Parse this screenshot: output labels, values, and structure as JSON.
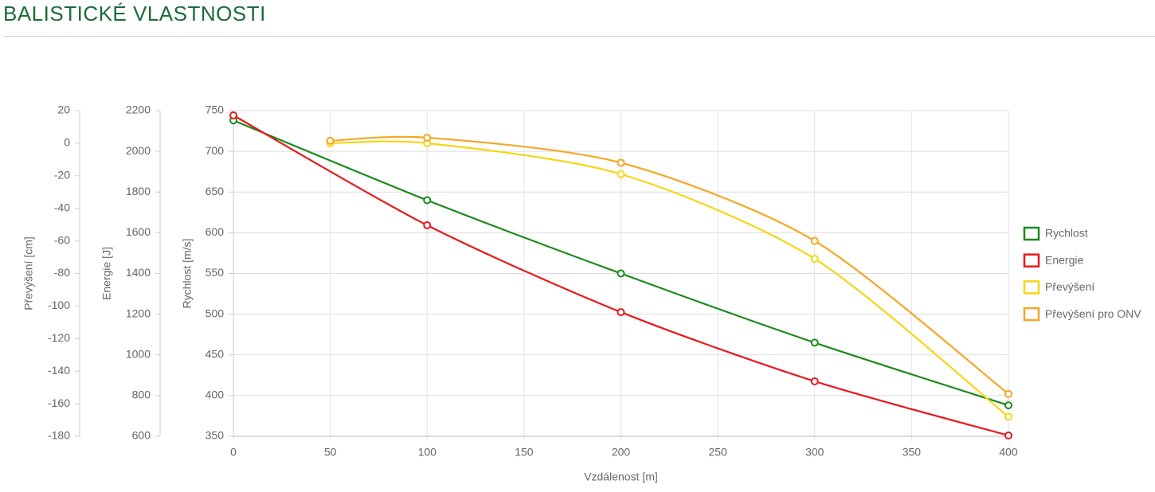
{
  "header": {
    "title": "BALISTICKÉ VLASTNOSTI"
  },
  "chart_data": {
    "type": "line",
    "xlabel": "Vzdálenost [m]",
    "xlim": [
      0,
      400
    ],
    "xticks": [
      0,
      50,
      100,
      150,
      200,
      250,
      300,
      350,
      400
    ],
    "ylabel": "Rychlost [m/s]",
    "ylim": [
      350,
      750
    ],
    "yticks": [
      350,
      400,
      450,
      500,
      550,
      600,
      650,
      700,
      750
    ],
    "y2label": "Energie [J]",
    "y2lim": [
      600,
      2200
    ],
    "y2ticks": [
      600,
      800,
      1000,
      1200,
      1400,
      1600,
      1800,
      2000,
      2200
    ],
    "y3label": "Převýšení [cm]",
    "y3lim": [
      -180,
      20
    ],
    "y3ticks": [
      -180,
      -160,
      -140,
      -120,
      -100,
      -80,
      -60,
      -40,
      -20,
      0,
      20
    ],
    "grid": true,
    "legend": "right",
    "series": [
      {
        "name": "Rychlost",
        "color": "#1a8a1a",
        "axis": "y",
        "x": [
          0,
          100,
          200,
          300,
          400
        ],
        "values": [
          738,
          640,
          550,
          465,
          388
        ]
      },
      {
        "name": "Energie",
        "color": "#e8191c",
        "axis": "y2",
        "x": [
          0,
          100,
          200,
          300,
          400
        ],
        "values": [
          2177,
          1637,
          1210,
          870,
          604
        ]
      },
      {
        "name": "Převýšení",
        "color": "#f5d614",
        "axis": "y3",
        "x": [
          50,
          100,
          200,
          300,
          400
        ],
        "values": [
          0,
          0,
          -19,
          -71,
          -168
        ]
      },
      {
        "name": "Převýšení pro ONV",
        "color": "#f5a623",
        "axis": "y3",
        "x": [
          50,
          100,
          200,
          300,
          400
        ],
        "values": [
          1.5,
          3.4,
          -12,
          -60,
          -154
        ]
      }
    ]
  }
}
